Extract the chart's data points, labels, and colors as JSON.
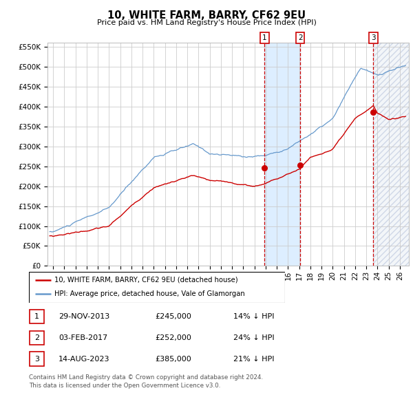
{
  "title": "10, WHITE FARM, BARRY, CF62 9EU",
  "subtitle": "Price paid vs. HM Land Registry's House Price Index (HPI)",
  "legend_line1": "10, WHITE FARM, BARRY, CF62 9EU (detached house)",
  "legend_line2": "HPI: Average price, detached house, Vale of Glamorgan",
  "footer1": "Contains HM Land Registry data © Crown copyright and database right 2024.",
  "footer2": "This data is licensed under the Open Government Licence v3.0.",
  "hpi_color": "#6699cc",
  "price_color": "#cc0000",
  "dot_color": "#cc0000",
  "vline_color": "#cc0000",
  "shade_color": "#ddeeff",
  "ylim": [
    0,
    560000
  ],
  "yticks": [
    0,
    50000,
    100000,
    150000,
    200000,
    250000,
    300000,
    350000,
    400000,
    450000,
    500000,
    550000
  ],
  "ytick_labels": [
    "£0",
    "£50K",
    "£100K",
    "£150K",
    "£200K",
    "£250K",
    "£300K",
    "£350K",
    "£400K",
    "£450K",
    "£500K",
    "£550K"
  ],
  "xlim_start": 1994.5,
  "xlim_end": 2026.8,
  "xtick_years": [
    1995,
    1996,
    1997,
    1998,
    1999,
    2000,
    2001,
    2002,
    2003,
    2004,
    2005,
    2006,
    2007,
    2008,
    2009,
    2010,
    2011,
    2012,
    2013,
    2014,
    2015,
    2016,
    2017,
    2018,
    2019,
    2020,
    2021,
    2022,
    2023,
    2024,
    2025,
    2026
  ],
  "sales": [
    {
      "label": "1",
      "date_num": 2013.91,
      "price": 245000,
      "pct": "14%",
      "date_str": "29-NOV-2013"
    },
    {
      "label": "2",
      "date_num": 2017.09,
      "price": 252000,
      "pct": "24%",
      "date_str": "03-FEB-2017"
    },
    {
      "label": "3",
      "date_num": 2023.62,
      "price": 385000,
      "pct": "21%",
      "date_str": "14-AUG-2023"
    }
  ],
  "shade_x1": 2013.91,
  "shade_x2": 2017.09,
  "grid_color": "#cccccc",
  "bg_color": "#ffffff"
}
